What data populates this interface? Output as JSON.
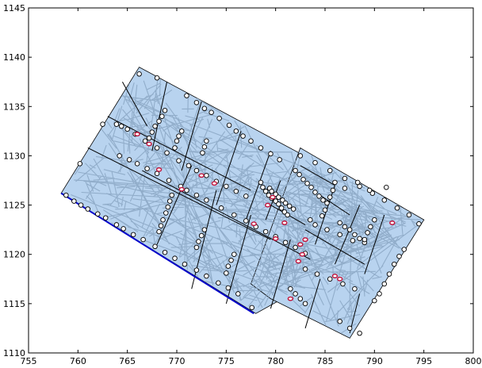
{
  "chart_data": {
    "type": "scatter",
    "xlim": [
      755,
      800
    ],
    "ylim": [
      1110,
      1145
    ],
    "x_ticks": [
      755,
      760,
      765,
      770,
      775,
      780,
      785,
      790,
      795,
      800
    ],
    "y_ticks": [
      1110,
      1115,
      1120,
      1125,
      1130,
      1135,
      1140,
      1145
    ],
    "x_tick_labels": [
      "755",
      "760",
      "765",
      "770",
      "775",
      "780",
      "785",
      "790",
      "795",
      "800"
    ],
    "y_tick_labels": [
      "1110",
      "1115",
      "1120",
      "1125",
      "1130",
      "1135",
      "1140",
      "1145"
    ],
    "grid": false,
    "colors": {
      "region_fill": "#b8d3ef",
      "dense_fill": "#8aa6c3",
      "edge": "#000000",
      "node_fill": "#ffffff",
      "highlight_edge": "#c0143c",
      "boundary_blue": "#0000cc"
    },
    "regions": [
      {
        "points": [
          [
            758.3,
            1126.2
          ],
          [
            766.2,
            1139.0
          ],
          [
            795.0,
            1123.5
          ],
          [
            778.0,
            1114.0
          ]
        ]
      },
      {
        "points": [
          [
            777.5,
            1117.0
          ],
          [
            782.5,
            1130.8
          ],
          [
            795.0,
            1123.5
          ],
          [
            787.5,
            1111.5
          ],
          [
            779.5,
            1115.5
          ]
        ]
      }
    ],
    "cell_lines": [
      [
        [
          763.0,
          1134.0
        ],
        [
          777.5,
          1126.5
        ]
      ],
      [
        [
          761.0,
          1130.8
        ],
        [
          779.5,
          1121.5
        ]
      ],
      [
        [
          766.5,
          1128.5
        ],
        [
          783.5,
          1119.5
        ]
      ],
      [
        [
          767.0,
          1133.0
        ],
        [
          764.5,
          1137.5
        ]
      ],
      [
        [
          771.5,
          1129.0
        ],
        [
          768.0,
          1121.0
        ]
      ],
      [
        [
          774.0,
          1126.5
        ],
        [
          771.5,
          1116.5
        ]
      ],
      [
        [
          777.5,
          1124.0
        ],
        [
          775.0,
          1115.0
        ]
      ],
      [
        [
          781.5,
          1121.5
        ],
        [
          779.5,
          1114.5
        ]
      ],
      [
        [
          776.5,
          1132.5
        ],
        [
          774.0,
          1125.0
        ]
      ],
      [
        [
          779.5,
          1130.5
        ],
        [
          777.0,
          1123.5
        ]
      ],
      [
        [
          772.5,
          1135.5
        ],
        [
          770.5,
          1128.5
        ]
      ],
      [
        [
          769.0,
          1137.5
        ],
        [
          767.5,
          1130.5
        ]
      ],
      [
        [
          782.5,
          1129.0
        ],
        [
          786.0,
          1127.0
        ]
      ],
      [
        [
          784.5,
          1126.0
        ],
        [
          787.5,
          1124.0
        ]
      ],
      [
        [
          786.0,
          1127.0
        ],
        [
          784.0,
          1121.0
        ]
      ],
      [
        [
          788.5,
          1125.0
        ],
        [
          786.0,
          1119.0
        ]
      ],
      [
        [
          791.0,
          1124.0
        ],
        [
          789.0,
          1118.0
        ]
      ],
      [
        [
          783.0,
          1122.5
        ],
        [
          789.0,
          1119.0
        ]
      ],
      [
        [
          784.5,
          1117.5
        ],
        [
          783.0,
          1112.5
        ]
      ],
      [
        [
          788.5,
          1116.0
        ],
        [
          787.5,
          1112.0
        ]
      ],
      [
        [
          779.5,
          1125.0
        ],
        [
          783.0,
          1123.0
        ]
      ],
      [
        [
          780.5,
          1127.5
        ],
        [
          779.0,
          1123.5
        ]
      ]
    ],
    "blue_line": [
      [
        758.3,
        1126.2
      ],
      [
        777.8,
        1114.0
      ]
    ],
    "nodes": [
      [
        758.8,
        1126.0
      ],
      [
        759.6,
        1125.4
      ],
      [
        760.3,
        1125.0
      ],
      [
        761.0,
        1124.6
      ],
      [
        762.0,
        1124.1
      ],
      [
        762.8,
        1123.7
      ],
      [
        763.9,
        1123.0
      ],
      [
        764.6,
        1122.6
      ],
      [
        765.6,
        1122.0
      ],
      [
        766.6,
        1121.5
      ],
      [
        767.8,
        1120.8
      ],
      [
        768.8,
        1120.2
      ],
      [
        769.8,
        1119.6
      ],
      [
        770.8,
        1119.0
      ],
      [
        772.0,
        1118.4
      ],
      [
        773.0,
        1117.8
      ],
      [
        774.2,
        1117.1
      ],
      [
        775.2,
        1116.6
      ],
      [
        776.2,
        1116.0
      ],
      [
        777.6,
        1114.6
      ],
      [
        760.2,
        1129.2
      ],
      [
        762.5,
        1133.2
      ],
      [
        763.9,
        1133.2
      ],
      [
        764.4,
        1133.0
      ],
      [
        765.0,
        1132.7
      ],
      [
        765.8,
        1132.2
      ],
      [
        766.2,
        1138.3
      ],
      [
        768.0,
        1137.9
      ],
      [
        771.0,
        1136.1
      ],
      [
        772.0,
        1135.4
      ],
      [
        772.8,
        1134.8
      ],
      [
        773.5,
        1134.4
      ],
      [
        774.3,
        1133.8
      ],
      [
        775.3,
        1133.1
      ],
      [
        776.0,
        1132.5
      ],
      [
        776.7,
        1132.0
      ],
      [
        777.5,
        1131.5
      ],
      [
        778.5,
        1130.8
      ],
      [
        779.5,
        1130.2
      ],
      [
        780.4,
        1129.6
      ],
      [
        764.2,
        1130.0
      ],
      [
        765.2,
        1129.6
      ],
      [
        766.0,
        1129.2
      ],
      [
        767.0,
        1128.7
      ],
      [
        768.0,
        1128.2
      ],
      [
        769.2,
        1127.5
      ],
      [
        770.4,
        1126.9
      ],
      [
        771.0,
        1126.5
      ],
      [
        772.0,
        1126.0
      ],
      [
        773.0,
        1125.5
      ],
      [
        774.5,
        1124.7
      ],
      [
        775.8,
        1124.0
      ],
      [
        777.0,
        1123.4
      ],
      [
        778.0,
        1122.8
      ],
      [
        779.0,
        1122.3
      ],
      [
        780.0,
        1121.8
      ],
      [
        781.0,
        1121.2
      ],
      [
        782.0,
        1120.7
      ],
      [
        783.0,
        1120.1
      ],
      [
        766.8,
        1131.5
      ],
      [
        768.0,
        1130.8
      ],
      [
        769.0,
        1130.3
      ],
      [
        770.2,
        1129.5
      ],
      [
        771.2,
        1129.0
      ],
      [
        772.0,
        1128.5
      ],
      [
        773.0,
        1128.0
      ],
      [
        774.0,
        1127.4
      ],
      [
        775.0,
        1126.9
      ],
      [
        776.0,
        1126.4
      ],
      [
        777.0,
        1125.9
      ],
      [
        768.5,
        1134.0
      ],
      [
        768.8,
        1134.6
      ],
      [
        768.2,
        1133.5
      ],
      [
        767.8,
        1133.0
      ],
      [
        767.5,
        1132.4
      ],
      [
        767.2,
        1131.8
      ],
      [
        770.5,
        1132.5
      ],
      [
        770.2,
        1132.0
      ],
      [
        770.0,
        1131.5
      ],
      [
        769.8,
        1130.8
      ],
      [
        773.0,
        1131.5
      ],
      [
        772.8,
        1130.9
      ],
      [
        772.6,
        1130.3
      ],
      [
        769.5,
        1126.0
      ],
      [
        769.3,
        1125.4
      ],
      [
        769.1,
        1124.8
      ],
      [
        768.9,
        1124.2
      ],
      [
        768.6,
        1123.5
      ],
      [
        768.4,
        1122.9
      ],
      [
        768.2,
        1122.3
      ],
      [
        772.8,
        1122.5
      ],
      [
        772.5,
        1121.9
      ],
      [
        772.2,
        1121.3
      ],
      [
        772.0,
        1120.7
      ],
      [
        775.8,
        1120.0
      ],
      [
        775.5,
        1119.4
      ],
      [
        775.2,
        1118.8
      ],
      [
        775.0,
        1118.1
      ],
      [
        778.5,
        1127.3
      ],
      [
        778.7,
        1126.8
      ],
      [
        779.0,
        1126.4
      ],
      [
        779.3,
        1126.0
      ],
      [
        779.6,
        1125.7
      ],
      [
        780.0,
        1125.4
      ],
      [
        780.3,
        1125.1
      ],
      [
        780.6,
        1124.7
      ],
      [
        780.9,
        1124.3
      ],
      [
        781.2,
        1124.0
      ],
      [
        779.4,
        1126.7
      ],
      [
        779.6,
        1126.4
      ],
      [
        780.0,
        1126.1
      ],
      [
        780.3,
        1125.8
      ],
      [
        780.7,
        1125.5
      ],
      [
        781.0,
        1125.2
      ],
      [
        781.4,
        1124.9
      ],
      [
        781.8,
        1124.6
      ],
      [
        782.0,
        1128.5
      ],
      [
        782.4,
        1128.1
      ],
      [
        782.8,
        1127.6
      ],
      [
        783.2,
        1127.2
      ],
      [
        783.6,
        1126.8
      ],
      [
        784.0,
        1126.3
      ],
      [
        784.4,
        1125.9
      ],
      [
        784.8,
        1125.5
      ],
      [
        782.5,
        1130.0
      ],
      [
        784.0,
        1129.3
      ],
      [
        785.5,
        1128.5
      ],
      [
        787.0,
        1127.7
      ],
      [
        788.5,
        1126.9
      ],
      [
        789.8,
        1126.2
      ],
      [
        791.0,
        1125.5
      ],
      [
        792.3,
        1124.7
      ],
      [
        793.5,
        1124.0
      ],
      [
        794.5,
        1123.1
      ],
      [
        786.0,
        1127.3
      ],
      [
        787.0,
        1126.7
      ],
      [
        788.3,
        1127.3
      ],
      [
        789.5,
        1126.5
      ],
      [
        791.2,
        1126.8
      ],
      [
        785.8,
        1126.5
      ],
      [
        785.5,
        1125.8
      ],
      [
        785.2,
        1125.2
      ],
      [
        785.0,
        1124.5
      ],
      [
        784.7,
        1123.9
      ],
      [
        786.5,
        1123.2
      ],
      [
        787.0,
        1122.8
      ],
      [
        787.5,
        1122.5
      ],
      [
        788.0,
        1122.0
      ],
      [
        788.5,
        1121.6
      ],
      [
        789.0,
        1121.2
      ],
      [
        790.0,
        1123.5
      ],
      [
        789.6,
        1122.8
      ],
      [
        789.3,
        1122.2
      ],
      [
        789.0,
        1121.5
      ],
      [
        793.0,
        1120.5
      ],
      [
        792.5,
        1119.8
      ],
      [
        792.0,
        1119.0
      ],
      [
        791.5,
        1118.0
      ],
      [
        791.0,
        1117.0
      ],
      [
        790.5,
        1116.0
      ],
      [
        790.0,
        1115.3
      ],
      [
        781.5,
        1116.5
      ],
      [
        782.0,
        1116.0
      ],
      [
        782.5,
        1115.5
      ],
      [
        783.0,
        1115.0
      ],
      [
        786.5,
        1113.2
      ],
      [
        787.5,
        1112.5
      ],
      [
        788.5,
        1112.0
      ],
      [
        783.5,
        1123.5
      ],
      [
        784.0,
        1123.0
      ],
      [
        785.2,
        1122.5
      ],
      [
        786.5,
        1122.0
      ],
      [
        787.8,
        1121.4
      ],
      [
        783.0,
        1118.5
      ],
      [
        784.2,
        1118.0
      ],
      [
        785.5,
        1117.5
      ],
      [
        786.8,
        1117.0
      ],
      [
        788.0,
        1116.5
      ]
    ],
    "highlight_nodes": [
      [
        766.0,
        1132.2
      ],
      [
        767.2,
        1131.2
      ],
      [
        768.2,
        1128.6
      ],
      [
        770.5,
        1126.6
      ],
      [
        772.5,
        1128.0
      ],
      [
        773.8,
        1127.2
      ],
      [
        777.8,
        1123.1
      ],
      [
        780.0,
        1121.6
      ],
      [
        779.2,
        1125.0
      ],
      [
        779.7,
        1125.8
      ],
      [
        780.9,
        1123.2
      ],
      [
        782.5,
        1121.0
      ],
      [
        783.0,
        1121.5
      ],
      [
        782.7,
        1120.0
      ],
      [
        782.3,
        1119.3
      ],
      [
        781.5,
        1115.5
      ],
      [
        786.0,
        1117.8
      ],
      [
        786.5,
        1117.5
      ],
      [
        791.8,
        1123.2
      ]
    ]
  }
}
